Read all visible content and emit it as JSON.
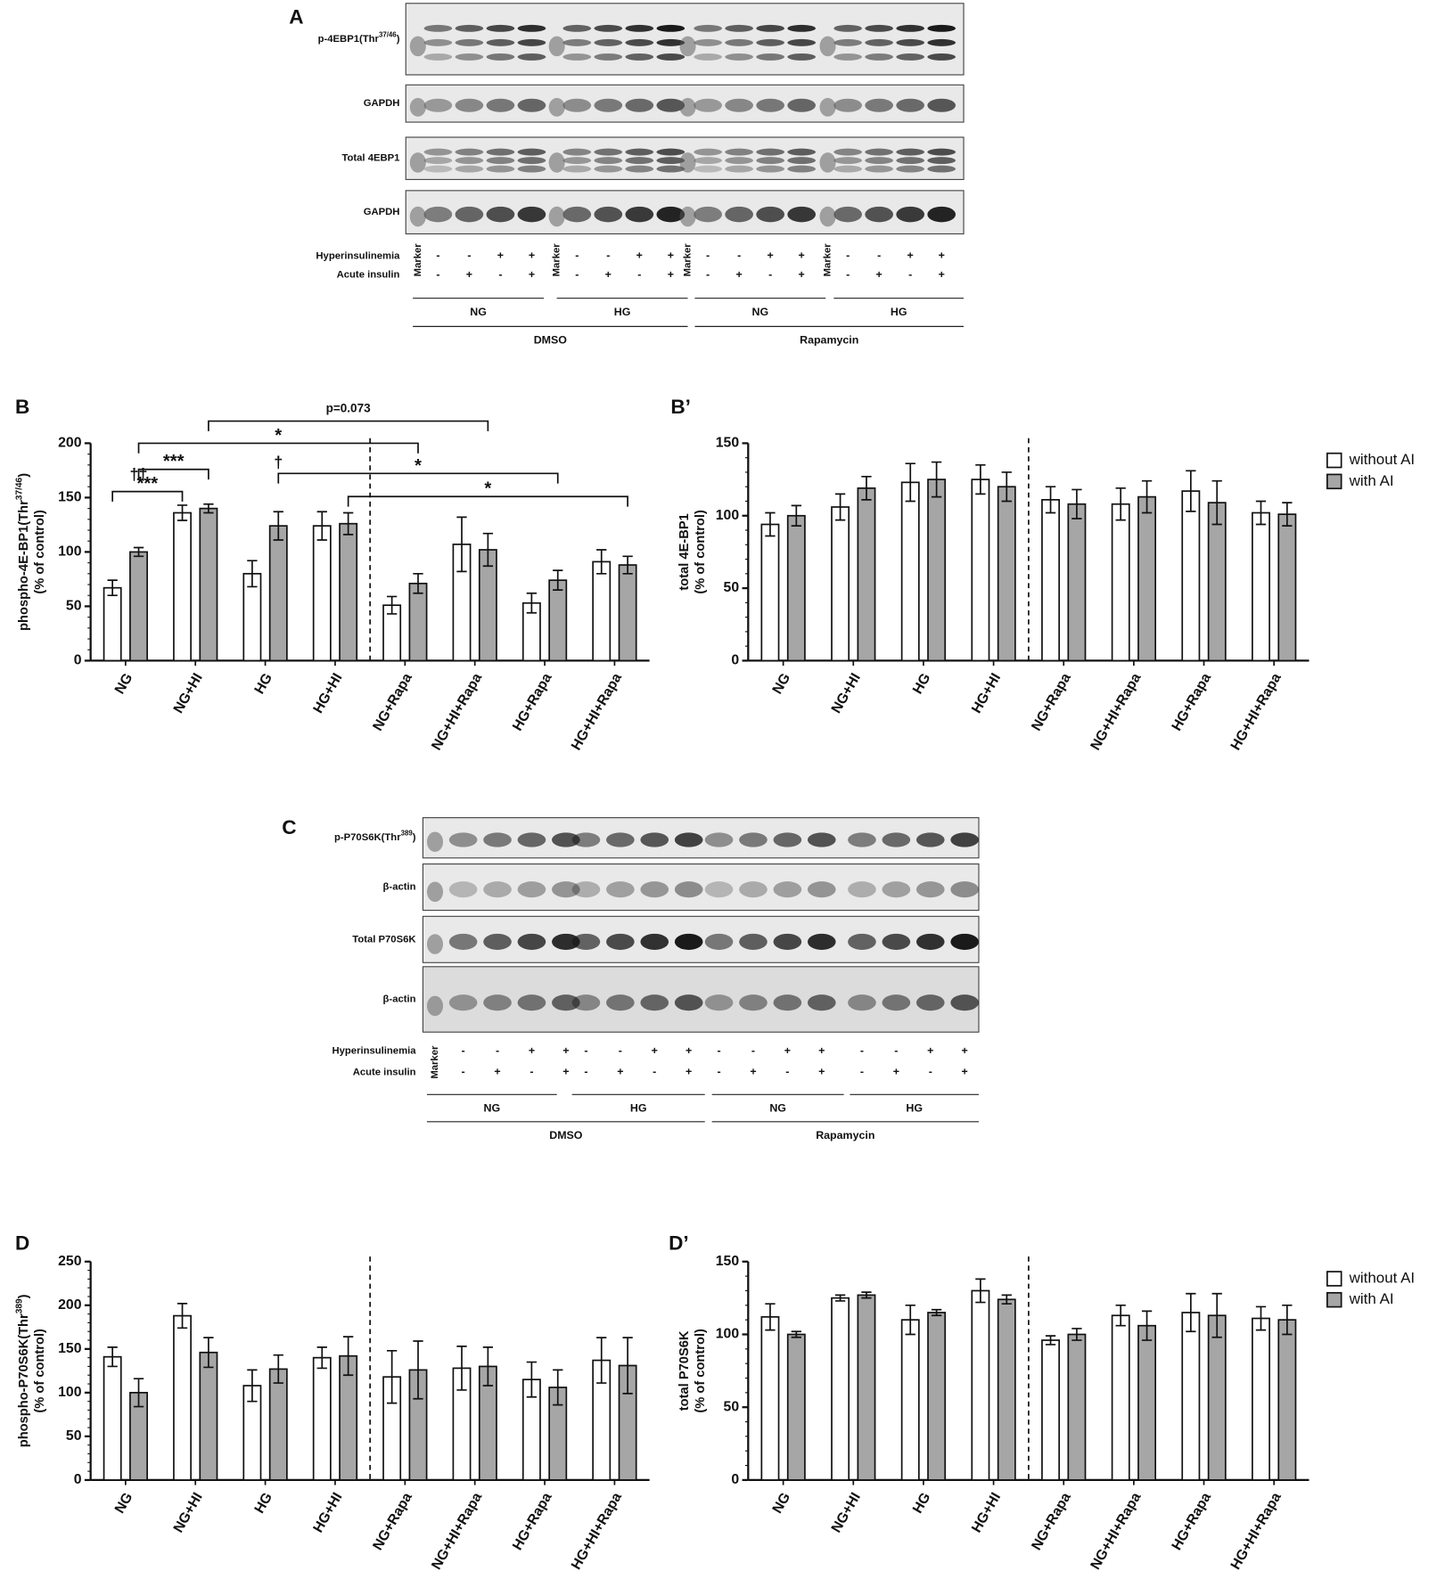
{
  "chart_data": [
    {
      "type": "bar",
      "panel": "B",
      "y_label": "phospho-4E-BP1(Thr",
      "y_label_sup": "37/46",
      "y_label_end": ")",
      "y_label_2": "(% of control)",
      "categories": [
        "NG",
        "NG+HI",
        "HG",
        "HG+HI",
        "NG+Rapa",
        "NG+HI+Rapa",
        "HG+Rapa",
        "HG+HI+Rapa"
      ],
      "series": [
        {
          "color": "#ffffff",
          "values": [
            67,
            136,
            80,
            124,
            51,
            107,
            53,
            91
          ],
          "errors": [
            7,
            7,
            12,
            13,
            8,
            25,
            9,
            11
          ]
        },
        {
          "color": "#a6a6a6",
          "values": [
            100,
            140,
            124,
            126,
            71,
            102,
            74,
            88
          ],
          "errors": [
            4,
            4,
            13,
            10,
            9,
            15,
            9,
            8
          ]
        }
      ],
      "ylim": [
        0,
        200
      ],
      "yticks": [
        0,
        50,
        100,
        150,
        200
      ],
      "annotations": [
        "***",
        "***",
        "*",
        "p=0.073",
        "*",
        "*",
        "††",
        "†"
      ]
    },
    {
      "type": "bar",
      "panel": "B’",
      "y_label": "total 4E-BP1",
      "y_label_2": "(% of control)",
      "categories": [
        "NG",
        "NG+HI",
        "HG",
        "HG+HI",
        "NG+Rapa",
        "NG+HI+Rapa",
        "HG+Rapa",
        "HG+HI+Rapa"
      ],
      "series": [
        {
          "name": "without AI",
          "color": "#ffffff",
          "values": [
            94,
            106,
            123,
            125,
            111,
            108,
            117,
            102
          ],
          "errors": [
            8,
            9,
            13,
            10,
            9,
            11,
            14,
            8
          ]
        },
        {
          "name": "with AI",
          "color": "#a6a6a6",
          "values": [
            100,
            119,
            125,
            120,
            108,
            113,
            109,
            101
          ],
          "errors": [
            7,
            8,
            12,
            10,
            10,
            11,
            15,
            8
          ]
        }
      ],
      "ylim": [
        0,
        150
      ],
      "yticks": [
        0,
        50,
        100,
        150
      ],
      "legend": "right"
    },
    {
      "type": "bar",
      "panel": "D",
      "y_label": "phospho-P70S6K(Thr",
      "y_label_sup": "389",
      "y_label_end": ")",
      "y_label_2": "(% of control)",
      "categories": [
        "NG",
        "NG+HI",
        "HG",
        "HG+HI",
        "NG+Rapa",
        "NG+HI+Rapa",
        "HG+Rapa",
        "HG+HI+Rapa"
      ],
      "series": [
        {
          "color": "#ffffff",
          "values": [
            141,
            188,
            108,
            140,
            118,
            128,
            115,
            137
          ],
          "errors": [
            11,
            14,
            18,
            12,
            30,
            25,
            20,
            26
          ]
        },
        {
          "color": "#a6a6a6",
          "values": [
            100,
            146,
            127,
            142,
            126,
            130,
            106,
            131
          ],
          "errors": [
            16,
            17,
            16,
            22,
            33,
            22,
            20,
            32
          ]
        }
      ],
      "ylim": [
        0,
        250
      ],
      "yticks": [
        0,
        50,
        100,
        150,
        200,
        250
      ]
    },
    {
      "type": "bar",
      "panel": "D’",
      "y_label": "total P70S6K",
      "y_label_2": "(% of control)",
      "categories": [
        "NG",
        "NG+HI",
        "HG",
        "HG+HI",
        "NG+Rapa",
        "NG+HI+Rapa",
        "HG+Rapa",
        "HG+HI+Rapa"
      ],
      "series": [
        {
          "name": "without AI",
          "color": "#ffffff",
          "values": [
            112,
            125,
            110,
            130,
            96,
            113,
            115,
            111
          ],
          "errors": [
            9,
            2,
            10,
            8,
            3,
            7,
            13,
            8
          ]
        },
        {
          "name": "with AI",
          "color": "#a6a6a6",
          "values": [
            100,
            127,
            115,
            124,
            100,
            106,
            113,
            110
          ],
          "errors": [
            2,
            2,
            2,
            3,
            4,
            10,
            15,
            10
          ]
        }
      ],
      "ylim": [
        0,
        150
      ],
      "yticks": [
        0,
        50,
        100,
        150
      ],
      "legend": "right"
    }
  ],
  "blots": [
    {
      "panel": "A",
      "rows": [
        {
          "label": "p-4EBP1(Thr",
          "sup": "37/46",
          "tail": ")"
        },
        {
          "label": "GAPDH"
        },
        {
          "label": "Total 4EBP1"
        },
        {
          "label": "GAPDH"
        }
      ],
      "marker": "Marker",
      "conditions": [
        {
          "label": "Hyperinsulinemia",
          "signs": [
            "-",
            "-",
            "+",
            "+"
          ]
        },
        {
          "label": "Acute insulin",
          "signs": [
            "-",
            "+",
            "-",
            "+"
          ]
        }
      ],
      "groups": [
        "NG",
        "HG",
        "NG",
        "HG"
      ],
      "treatments": [
        "DMSO",
        "Rapamycin"
      ]
    },
    {
      "panel": "C",
      "rows": [
        {
          "label": "p-P70S6K(Thr",
          "sup": "389",
          "tail": ")"
        },
        {
          "label": "β-actin"
        },
        {
          "label": "Total P70S6K"
        },
        {
          "label": "β-actin"
        }
      ],
      "marker": "Marker",
      "conditions": [
        {
          "label": "Hyperinsulinemia",
          "signs": [
            "-",
            "-",
            "+",
            "+"
          ]
        },
        {
          "label": "Acute insulin",
          "signs": [
            "-",
            "+",
            "-",
            "+"
          ]
        }
      ],
      "groups": [
        "NG",
        "HG",
        "NG",
        "HG"
      ],
      "treatments": [
        "DMSO",
        "Rapamycin"
      ]
    }
  ]
}
